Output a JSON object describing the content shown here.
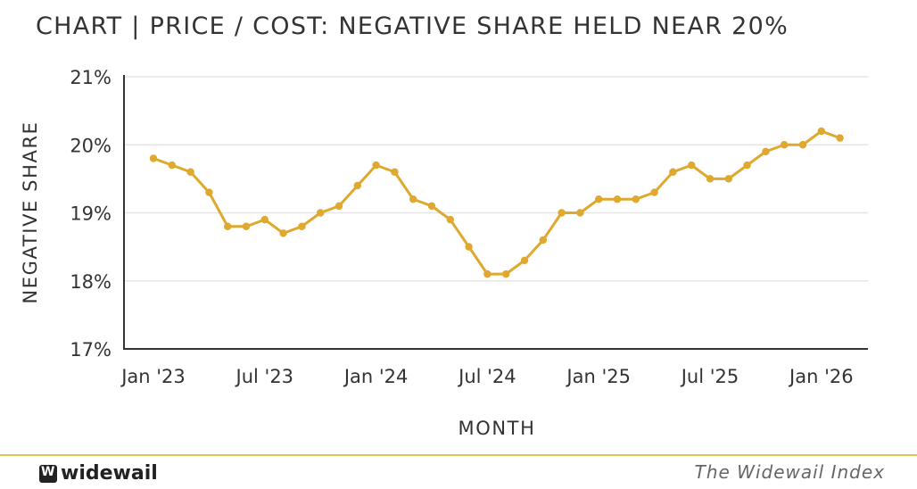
{
  "title": "CHART | PRICE / COST: NEGATIVE SHARE HELD NEAR 20%",
  "footer": {
    "brand": "widewail",
    "index_name": "The Widewail Index"
  },
  "colors": {
    "line": "#dfa82e",
    "grid": "#e6e6e6",
    "axis": "#333333",
    "footer_rule": "#e7c253"
  },
  "chart_data": {
    "type": "line",
    "title": "CHART | PRICE / COST: NEGATIVE SHARE HELD NEAR 20%",
    "xlabel": "MONTH",
    "ylabel": "NEGATIVE SHARE",
    "ylim": [
      17,
      21
    ],
    "y_ticks": [
      "17%",
      "18%",
      "19%",
      "20%",
      "21%"
    ],
    "x_ticks": [
      "Jan '23",
      "Jul '23",
      "Jan '24",
      "Jul '24",
      "Jan '25",
      "Jul '25",
      "Jan '26"
    ],
    "grid": true,
    "x": [
      "2023-01",
      "2023-02",
      "2023-03",
      "2023-04",
      "2023-05",
      "2023-06",
      "2023-07",
      "2023-08",
      "2023-09",
      "2023-10",
      "2023-11",
      "2023-12",
      "2024-01",
      "2024-02",
      "2024-03",
      "2024-04",
      "2024-05",
      "2024-06",
      "2024-07",
      "2024-08",
      "2024-09",
      "2024-10",
      "2024-11",
      "2024-12",
      "2025-01",
      "2025-02",
      "2025-03",
      "2025-04",
      "2025-05",
      "2025-06",
      "2025-07",
      "2025-08",
      "2025-09",
      "2025-10",
      "2025-11",
      "2025-12",
      "2026-01",
      "2026-02"
    ],
    "series": [
      {
        "values": [
          19.8,
          19.7,
          19.6,
          19.3,
          18.8,
          18.8,
          18.9,
          18.7,
          18.8,
          19.0,
          19.1,
          19.4,
          19.7,
          19.6,
          19.2,
          19.1,
          18.9,
          18.5,
          18.1,
          18.1,
          18.3,
          18.6,
          19.0,
          19.0,
          19.2,
          19.2,
          19.2,
          19.3,
          19.6,
          19.7,
          19.5,
          19.5,
          19.7,
          19.9,
          20.0,
          20.0,
          20.2,
          20.1
        ]
      }
    ]
  }
}
